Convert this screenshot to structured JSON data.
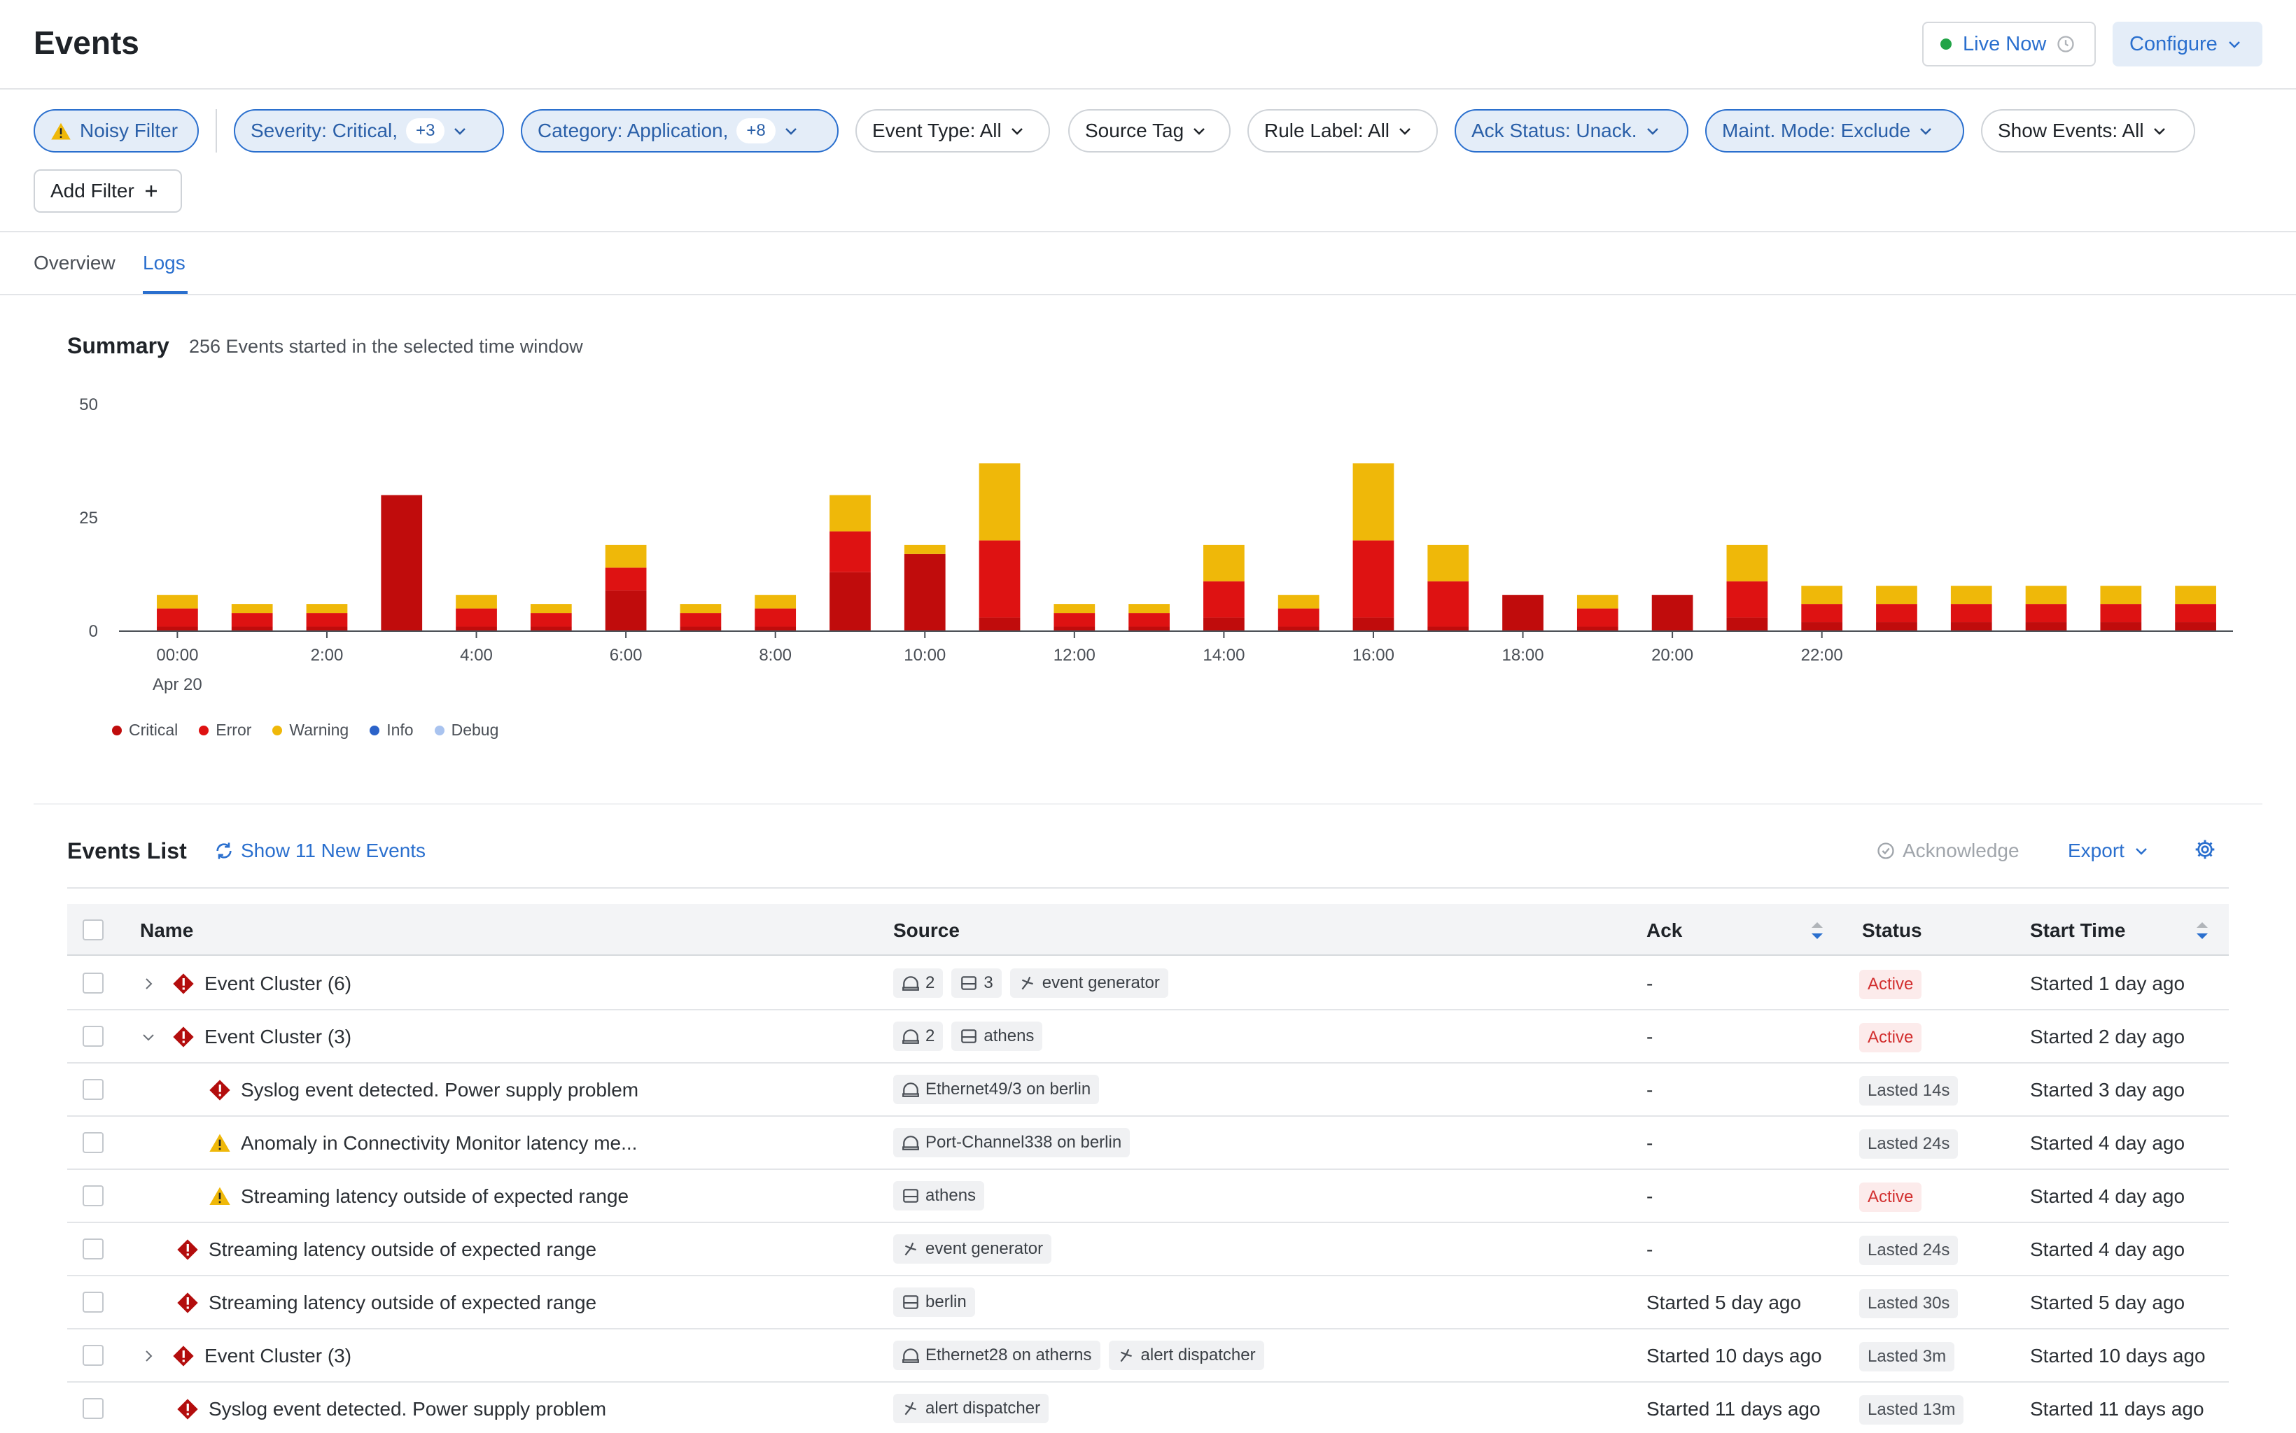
{
  "header": {
    "title": "Events",
    "live_label": "Live Now",
    "configure_label": "Configure"
  },
  "filters": {
    "noisy": "Noisy Filter",
    "severity": "Severity: Critical,",
    "severity_count": "+3",
    "category": "Category: Application,",
    "category_count": "+8",
    "event_type": "Event Type: All",
    "source_tag": "Source Tag",
    "rule_label": "Rule Label: All",
    "ack_status": "Ack Status: Unack.",
    "maint_mode": "Maint. Mode: Exclude",
    "show_events": "Show Events: All",
    "add_filter": "Add Filter"
  },
  "tabs": {
    "overview": "Overview",
    "logs": "Logs"
  },
  "summary": {
    "title": "Summary",
    "subtitle": "256 Events started in the selected time window"
  },
  "chart_data": {
    "type": "bar",
    "stacked": true,
    "ylim": [
      0,
      50
    ],
    "yticks": [
      "0",
      "25",
      "50"
    ],
    "x_tick_labels": [
      "00:00",
      "2:00",
      "4:00",
      "6:00",
      "8:00",
      "10:00",
      "12:00",
      "14:00",
      "16:00",
      "18:00",
      "20:00",
      "22:00"
    ],
    "x_sub_label": "Apr 20",
    "categories": [
      "00:00",
      "01:00",
      "02:00",
      "03:00",
      "04:00",
      "05:00",
      "06:00",
      "07:00",
      "08:00",
      "09:00",
      "10:00",
      "11:00",
      "12:00",
      "13:00",
      "14:00",
      "15:00",
      "16:00",
      "17:00",
      "18:00",
      "19:00",
      "20:00",
      "21:00",
      "22:00",
      "23:00",
      "00:00",
      "01:00",
      "02:00",
      "03:00"
    ],
    "series": [
      {
        "name": "Critical",
        "color": "#c00c0c",
        "values": [
          1,
          1,
          1,
          30,
          1,
          1,
          9,
          1,
          1,
          13,
          17,
          3,
          1,
          1,
          3,
          1,
          3,
          1,
          8,
          1,
          8,
          3,
          2,
          2,
          2,
          2,
          2,
          2
        ]
      },
      {
        "name": "Error",
        "color": "#de1212",
        "values": [
          4,
          3,
          3,
          0,
          4,
          3,
          5,
          3,
          4,
          9,
          0,
          17,
          3,
          3,
          8,
          4,
          17,
          10,
          0,
          4,
          0,
          8,
          4,
          4,
          4,
          4,
          4,
          4
        ]
      },
      {
        "name": "Warning",
        "color": "#efb809",
        "values": [
          3,
          2,
          2,
          0,
          3,
          2,
          5,
          2,
          3,
          8,
          2,
          17,
          2,
          2,
          8,
          3,
          17,
          8,
          0,
          3,
          0,
          8,
          4,
          4,
          4,
          4,
          4,
          4
        ]
      },
      {
        "name": "Info",
        "color": "#2b63c9",
        "values": [
          0,
          0,
          0,
          0,
          0,
          0,
          0,
          0,
          0,
          0,
          0,
          0,
          0,
          0,
          0,
          0,
          0,
          0,
          0,
          0,
          0,
          0,
          0,
          0,
          0,
          0,
          0,
          0
        ]
      },
      {
        "name": "Debug",
        "color": "#a9c3ef",
        "values": [
          0,
          0,
          0,
          0,
          0,
          0,
          0,
          0,
          0,
          0,
          0,
          0,
          0,
          0,
          0,
          0,
          0,
          0,
          0,
          0,
          0,
          0,
          0,
          0,
          0,
          0,
          0,
          0
        ]
      }
    ]
  },
  "events_list": {
    "title": "Events List",
    "new_events": "Show 11 New Events",
    "acknowledge": "Acknowledge",
    "export": "Export",
    "columns": {
      "name": "Name",
      "source": "Source",
      "ack": "Ack",
      "status": "Status",
      "start_time": "Start Time"
    },
    "rows": [
      {
        "name": "Event Cluster (6)",
        "severity": "critical",
        "expander": "collapsed",
        "indent": 0,
        "tags": [
          {
            "icon": "interface-icon",
            "text": "2"
          },
          {
            "icon": "device-icon",
            "text": "3"
          },
          {
            "icon": "generator-icon",
            "text": "event generator"
          }
        ],
        "ack": "-",
        "status": "Active",
        "status_kind": "active",
        "start": "Started 1 day ago"
      },
      {
        "name": "Event Cluster (3)",
        "severity": "critical",
        "expander": "expanded",
        "indent": 0,
        "tags": [
          {
            "icon": "interface-icon",
            "text": "2"
          },
          {
            "icon": "device-icon",
            "text": "athens"
          }
        ],
        "ack": "-",
        "status": "Active",
        "status_kind": "active",
        "start": "Started 2 day ago"
      },
      {
        "name": "Syslog event detected. Power supply problem",
        "severity": "critical",
        "expander": "none",
        "indent": 2,
        "tags": [
          {
            "icon": "interface-icon",
            "text": "Ethernet49/3 on berlin"
          }
        ],
        "ack": "-",
        "status": "Lasted 14s",
        "status_kind": "lasted",
        "start": "Started 3 day ago"
      },
      {
        "name": "Anomaly in Connectivity Monitor latency me...",
        "severity": "warning",
        "expander": "none",
        "indent": 2,
        "tags": [
          {
            "icon": "interface-icon",
            "text": "Port-Channel338 on berlin"
          }
        ],
        "ack": "-",
        "status": "Lasted 24s",
        "status_kind": "lasted",
        "start": "Started 4 day ago"
      },
      {
        "name": "Streaming latency outside of expected range",
        "severity": "warning",
        "expander": "none",
        "indent": 2,
        "tags": [
          {
            "icon": "device-icon",
            "text": "athens"
          }
        ],
        "ack": "-",
        "status": "Active",
        "status_kind": "active",
        "start": "Started 4 day ago"
      },
      {
        "name": "Streaming latency outside of expected range",
        "severity": "critical",
        "expander": "none",
        "indent": 1,
        "tags": [
          {
            "icon": "generator-icon",
            "text": "event generator"
          }
        ],
        "ack": "-",
        "status": "Lasted 24s",
        "status_kind": "lasted",
        "start": "Started 4 day ago"
      },
      {
        "name": "Streaming latency outside of expected range",
        "severity": "critical",
        "expander": "none",
        "indent": 1,
        "tags": [
          {
            "icon": "device-icon",
            "text": "berlin"
          }
        ],
        "ack": "Started 5 day ago",
        "status": "Lasted 30s",
        "status_kind": "lasted",
        "start": "Started 5 day ago"
      },
      {
        "name": "Event Cluster (3)",
        "severity": "critical",
        "expander": "collapsed",
        "indent": 0,
        "tags": [
          {
            "icon": "interface-icon",
            "text": "Ethernet28 on atherns"
          },
          {
            "icon": "generator-icon",
            "text": "alert dispatcher"
          }
        ],
        "ack": "Started 10 days ago",
        "status": "Lasted 3m",
        "status_kind": "lasted",
        "start": "Started 10 days ago"
      },
      {
        "name": "Syslog event detected. Power supply problem",
        "severity": "critical",
        "expander": "none",
        "indent": 1,
        "tags": [
          {
            "icon": "generator-icon",
            "text": "alert dispatcher"
          }
        ],
        "ack": "Started 11 days ago",
        "status": "Lasted 13m",
        "status_kind": "lasted",
        "start": "Started 11 days ago"
      }
    ]
  }
}
